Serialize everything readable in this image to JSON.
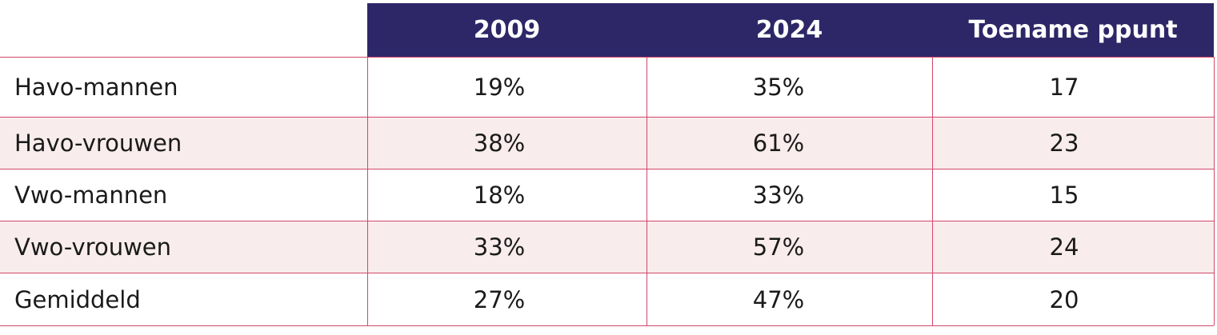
{
  "table": {
    "columns": [
      "",
      "2009",
      "2024",
      "Toename ppunt"
    ],
    "rows": [
      {
        "label": "Havo-mannen",
        "y2009": "19%",
        "y2024": "35%",
        "increase": "17"
      },
      {
        "label": "Havo-vrouwen",
        "y2009": "38%",
        "y2024": "61%",
        "increase": "23"
      },
      {
        "label": "Vwo-mannen",
        "y2009": "18%",
        "y2024": "33%",
        "increase": "15"
      },
      {
        "label": "Vwo-vrouwen",
        "y2009": "33%",
        "y2024": "57%",
        "increase": "24"
      },
      {
        "label": "Gemiddeld",
        "y2009": "27%",
        "y2024": "47%",
        "increase": "20"
      }
    ]
  },
  "colors": {
    "header_background": "#2d2768",
    "header_text": "#ffffff",
    "row_shade": "#f8ecec",
    "grid_lines": "#d2476b",
    "body_text": "#1a1a1a"
  }
}
